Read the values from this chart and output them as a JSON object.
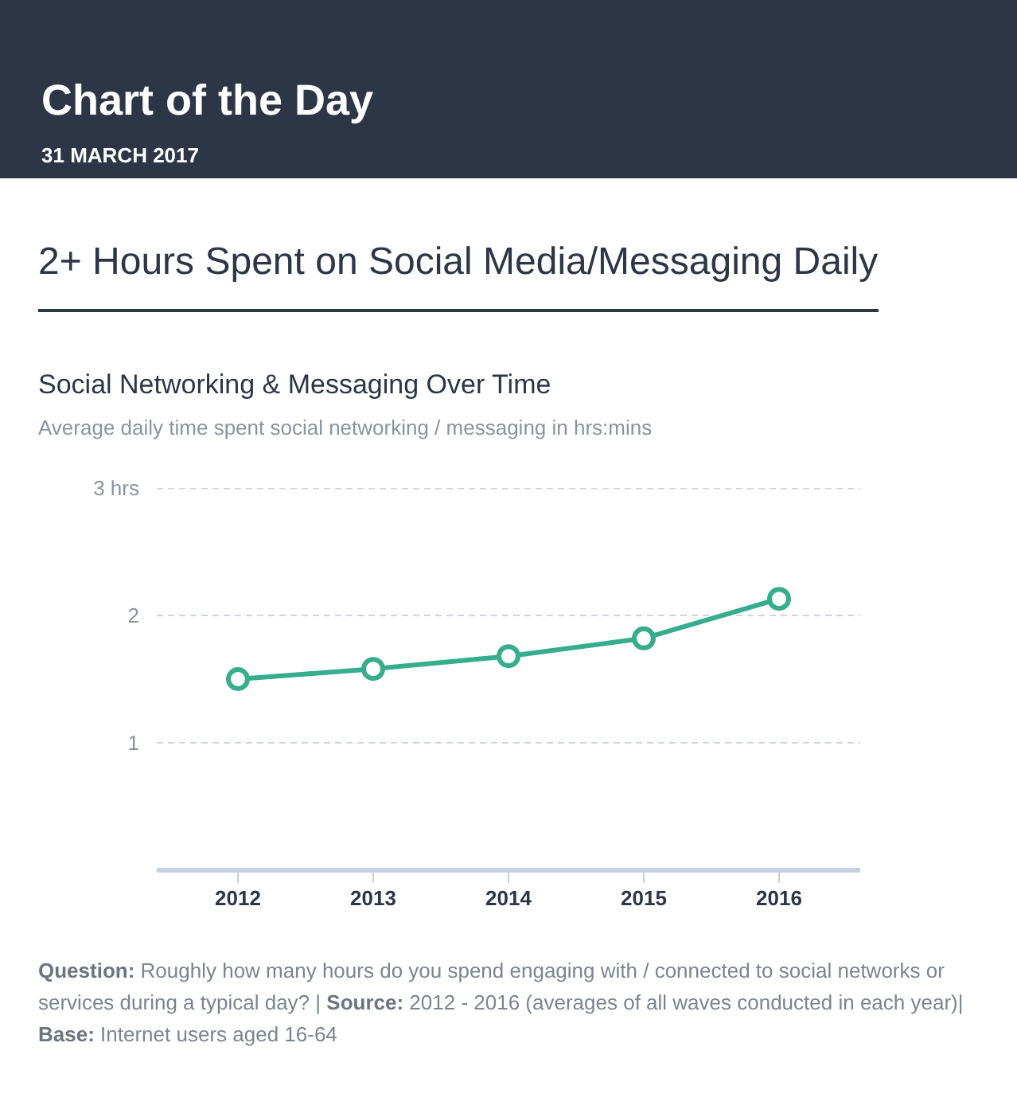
{
  "chart_data": {
    "type": "line",
    "title": "2+ Hours Spent on Social Media/Messaging Daily",
    "subtitle": "Social Networking & Messaging Over Time",
    "annotations": [
      "Chart of the Day",
      "31 MARCH 2017",
      "Average daily time spent social networking / messaging in hrs:mins",
      "Question: Roughly how many hours do you spend engaging with / connected to social networks or services during a typical day? | Source: 2012 - 2016 (averages of all waves conducted in each year)| Base: Internet users aged 16-64"
    ],
    "categories": [
      "2012",
      "2013",
      "2014",
      "2015",
      "2016"
    ],
    "series": [
      {
        "color": "#36ad8c",
        "values": [
          1.5,
          1.58,
          1.68,
          1.82,
          2.13
        ]
      }
    ],
    "ylim": [
      0,
      3
    ],
    "yticks": [
      1,
      2,
      {
        "value": 3,
        "label": "3 hrs"
      }
    ],
    "grid": "y",
    "marker": "circle",
    "line_style": "solid"
  }
}
